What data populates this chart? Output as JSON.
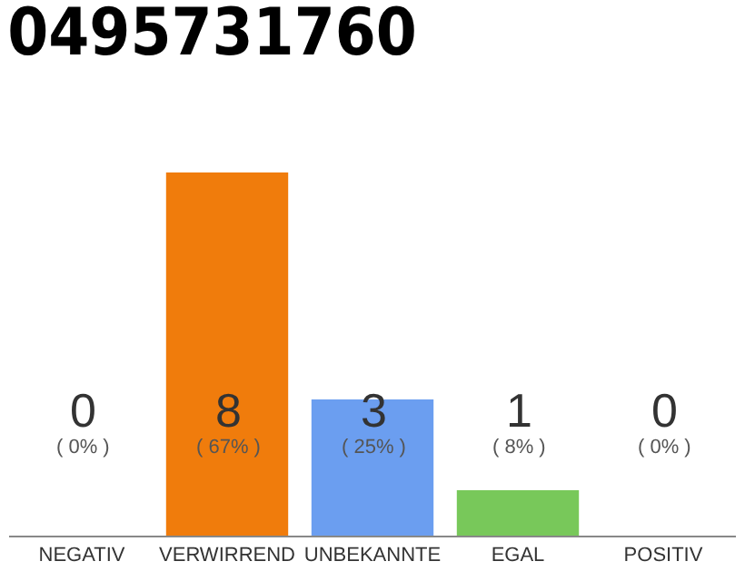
{
  "chart_data": {
    "type": "bar",
    "title": "0495731760",
    "categories": [
      "NEGATIV",
      "VERWIRREND",
      "UNBEKANNTE",
      "EGAL",
      "POSITIV"
    ],
    "values": [
      0,
      8,
      3,
      1,
      0
    ],
    "value_labels": [
      "0\n( 0% )",
      "8\n( 67% )",
      "3\n( 25% )",
      "1\n( 8% )",
      "0\n( 0% )"
    ],
    "colors": [
      "#aaaaaa",
      "#f07c0c",
      "#6b9ef0",
      "#78c85a",
      "#aaaaaa"
    ],
    "ylim": [
      0,
      8
    ],
    "tick_labels": "x"
  }
}
